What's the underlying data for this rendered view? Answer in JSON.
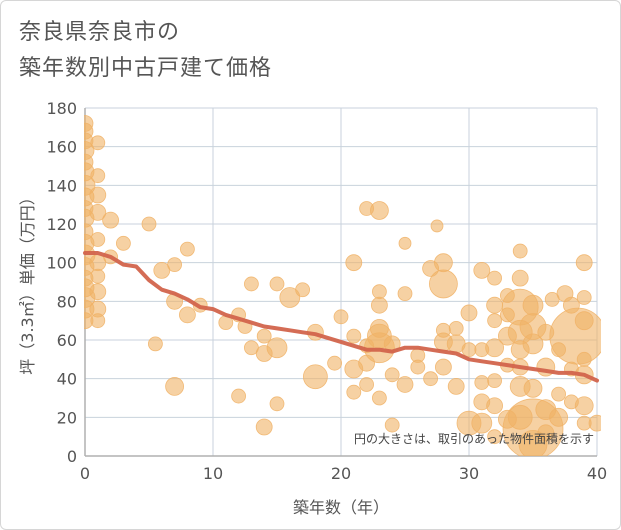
{
  "title_lines": [
    "奈良県奈良市の",
    "築年数別中古戸建て価格"
  ],
  "chart_data": {
    "type": "scatter",
    "title": "奈良県奈良市の築年数別中古戸建て価格",
    "xlabel": "築年数（年）",
    "ylabel": "坪（3.3㎡）単価（万円）",
    "xlim": [
      0,
      40
    ],
    "ylim": [
      0,
      180
    ],
    "xticks": [
      0,
      10,
      20,
      30,
      40
    ],
    "yticks": [
      0,
      20,
      40,
      60,
      80,
      100,
      120,
      140,
      160,
      180
    ],
    "grid": true,
    "note": "円の大きさは、取引のあった物件面積を示す",
    "colors": {
      "bubble": "#f0b266",
      "trend": "#d2644c",
      "grid": "#c8d2dc",
      "axis": "#b0b0b0"
    },
    "scatter_points": [
      {
        "x": 0,
        "y": 172,
        "s": 8
      },
      {
        "x": 0,
        "y": 168,
        "s": 8
      },
      {
        "x": 0,
        "y": 163,
        "s": 8
      },
      {
        "x": 0,
        "y": 158,
        "s": 9
      },
      {
        "x": 0,
        "y": 152,
        "s": 8
      },
      {
        "x": 0,
        "y": 147,
        "s": 9
      },
      {
        "x": 0,
        "y": 140,
        "s": 10
      },
      {
        "x": 0,
        "y": 134,
        "s": 9
      },
      {
        "x": 0,
        "y": 128,
        "s": 8
      },
      {
        "x": 0,
        "y": 123,
        "s": 9
      },
      {
        "x": 0,
        "y": 116,
        "s": 8
      },
      {
        "x": 0,
        "y": 110,
        "s": 9
      },
      {
        "x": 0,
        "y": 104,
        "s": 10
      },
      {
        "x": 0,
        "y": 98,
        "s": 9
      },
      {
        "x": 0,
        "y": 92,
        "s": 8
      },
      {
        "x": 0,
        "y": 87,
        "s": 9
      },
      {
        "x": 0,
        "y": 82,
        "s": 10
      },
      {
        "x": 0,
        "y": 76,
        "s": 9
      },
      {
        "x": 0,
        "y": 70,
        "s": 8
      },
      {
        "x": 1,
        "y": 162,
        "s": 7
      },
      {
        "x": 1,
        "y": 145,
        "s": 7
      },
      {
        "x": 1,
        "y": 135,
        "s": 8
      },
      {
        "x": 1,
        "y": 126,
        "s": 8
      },
      {
        "x": 1,
        "y": 112,
        "s": 7
      },
      {
        "x": 1,
        "y": 100,
        "s": 8
      },
      {
        "x": 1,
        "y": 93,
        "s": 7
      },
      {
        "x": 1,
        "y": 85,
        "s": 8
      },
      {
        "x": 1,
        "y": 76,
        "s": 8
      },
      {
        "x": 1,
        "y": 70,
        "s": 7
      },
      {
        "x": 2,
        "y": 122,
        "s": 8
      },
      {
        "x": 2,
        "y": 103,
        "s": 7
      },
      {
        "x": 3,
        "y": 110,
        "s": 7
      },
      {
        "x": 5,
        "y": 120,
        "s": 7
      },
      {
        "x": 5.5,
        "y": 58,
        "s": 7
      },
      {
        "x": 6,
        "y": 96,
        "s": 8
      },
      {
        "x": 7,
        "y": 99,
        "s": 7
      },
      {
        "x": 7,
        "y": 80,
        "s": 8
      },
      {
        "x": 7,
        "y": 36,
        "s": 9
      },
      {
        "x": 8,
        "y": 107,
        "s": 7
      },
      {
        "x": 8,
        "y": 73,
        "s": 8
      },
      {
        "x": 9,
        "y": 78,
        "s": 7
      },
      {
        "x": 11,
        "y": 69,
        "s": 7
      },
      {
        "x": 12,
        "y": 73,
        "s": 7
      },
      {
        "x": 12,
        "y": 31,
        "s": 7
      },
      {
        "x": 12.5,
        "y": 67,
        "s": 7
      },
      {
        "x": 13,
        "y": 89,
        "s": 7
      },
      {
        "x": 13,
        "y": 56,
        "s": 7
      },
      {
        "x": 14,
        "y": 62,
        "s": 7
      },
      {
        "x": 14,
        "y": 53,
        "s": 8
      },
      {
        "x": 14,
        "y": 15,
        "s": 8
      },
      {
        "x": 15,
        "y": 89,
        "s": 7
      },
      {
        "x": 15,
        "y": 56,
        "s": 10
      },
      {
        "x": 15,
        "y": 27,
        "s": 7
      },
      {
        "x": 16,
        "y": 82,
        "s": 10
      },
      {
        "x": 17,
        "y": 86,
        "s": 7
      },
      {
        "x": 18,
        "y": 64,
        "s": 8
      },
      {
        "x": 18,
        "y": 41,
        "s": 12
      },
      {
        "x": 19.5,
        "y": 48,
        "s": 7
      },
      {
        "x": 20,
        "y": 72,
        "s": 7
      },
      {
        "x": 21,
        "y": 100,
        "s": 8
      },
      {
        "x": 21,
        "y": 62,
        "s": 7
      },
      {
        "x": 21,
        "y": 45,
        "s": 9
      },
      {
        "x": 21,
        "y": 33,
        "s": 7
      },
      {
        "x": 22,
        "y": 128,
        "s": 7
      },
      {
        "x": 22,
        "y": 57,
        "s": 7
      },
      {
        "x": 22,
        "y": 48,
        "s": 8
      },
      {
        "x": 22,
        "y": 37,
        "s": 7
      },
      {
        "x": 23,
        "y": 127,
        "s": 9
      },
      {
        "x": 23,
        "y": 85,
        "s": 7
      },
      {
        "x": 23,
        "y": 78,
        "s": 8
      },
      {
        "x": 23,
        "y": 66,
        "s": 9
      },
      {
        "x": 23,
        "y": 62,
        "s": 12
      },
      {
        "x": 23,
        "y": 56,
        "s": 15
      },
      {
        "x": 23,
        "y": 30,
        "s": 7
      },
      {
        "x": 24,
        "y": 58,
        "s": 8
      },
      {
        "x": 24,
        "y": 42,
        "s": 7
      },
      {
        "x": 24,
        "y": 16,
        "s": 7
      },
      {
        "x": 25,
        "y": 110,
        "s": 6
      },
      {
        "x": 25,
        "y": 84,
        "s": 7
      },
      {
        "x": 25,
        "y": 37,
        "s": 8
      },
      {
        "x": 26,
        "y": 52,
        "s": 7
      },
      {
        "x": 26,
        "y": 46,
        "s": 7
      },
      {
        "x": 27,
        "y": 97,
        "s": 8
      },
      {
        "x": 27,
        "y": 40,
        "s": 7
      },
      {
        "x": 27.5,
        "y": 119,
        "s": 6
      },
      {
        "x": 28,
        "y": 100,
        "s": 9
      },
      {
        "x": 28,
        "y": 89,
        "s": 14
      },
      {
        "x": 28,
        "y": 65,
        "s": 7
      },
      {
        "x": 28,
        "y": 59,
        "s": 9
      },
      {
        "x": 28,
        "y": 46,
        "s": 8
      },
      {
        "x": 29,
        "y": 66,
        "s": 7
      },
      {
        "x": 29,
        "y": 58,
        "s": 9
      },
      {
        "x": 29,
        "y": 36,
        "s": 8
      },
      {
        "x": 30,
        "y": 74,
        "s": 8
      },
      {
        "x": 30,
        "y": 55,
        "s": 7
      },
      {
        "x": 30,
        "y": 17,
        "s": 12
      },
      {
        "x": 31,
        "y": 96,
        "s": 8
      },
      {
        "x": 31,
        "y": 55,
        "s": 7
      },
      {
        "x": 31,
        "y": 38,
        "s": 7
      },
      {
        "x": 31,
        "y": 28,
        "s": 8
      },
      {
        "x": 31,
        "y": 17,
        "s": 10
      },
      {
        "x": 32,
        "y": 92,
        "s": 7
      },
      {
        "x": 32,
        "y": 78,
        "s": 8
      },
      {
        "x": 32,
        "y": 70,
        "s": 7
      },
      {
        "x": 32,
        "y": 56,
        "s": 9
      },
      {
        "x": 32,
        "y": 39,
        "s": 7
      },
      {
        "x": 32,
        "y": 26,
        "s": 8
      },
      {
        "x": 32,
        "y": 10,
        "s": 7
      },
      {
        "x": 33,
        "y": 83,
        "s": 7
      },
      {
        "x": 33,
        "y": 73,
        "s": 7
      },
      {
        "x": 33,
        "y": 62,
        "s": 9
      },
      {
        "x": 33,
        "y": 47,
        "s": 7
      },
      {
        "x": 33,
        "y": 19,
        "s": 9
      },
      {
        "x": 34,
        "y": 106,
        "s": 7
      },
      {
        "x": 34,
        "y": 92,
        "s": 8
      },
      {
        "x": 34,
        "y": 77,
        "s": 18
      },
      {
        "x": 34,
        "y": 64,
        "s": 12
      },
      {
        "x": 34,
        "y": 55,
        "s": 9
      },
      {
        "x": 34,
        "y": 46,
        "s": 8
      },
      {
        "x": 34,
        "y": 36,
        "s": 10
      },
      {
        "x": 34,
        "y": 20,
        "s": 12
      },
      {
        "x": 35,
        "y": 78,
        "s": 10
      },
      {
        "x": 35,
        "y": 67,
        "s": 13
      },
      {
        "x": 35,
        "y": 58,
        "s": 10
      },
      {
        "x": 35,
        "y": 35,
        "s": 9
      },
      {
        "x": 35,
        "y": 14,
        "s": 30
      },
      {
        "x": 35,
        "y": 6,
        "s": 14
      },
      {
        "x": 36,
        "y": 64,
        "s": 8
      },
      {
        "x": 36,
        "y": 46,
        "s": 9
      },
      {
        "x": 36,
        "y": 24,
        "s": 10
      },
      {
        "x": 36,
        "y": 12,
        "s": 8
      },
      {
        "x": 36.5,
        "y": 81,
        "s": 7
      },
      {
        "x": 37,
        "y": 55,
        "s": 7
      },
      {
        "x": 37,
        "y": 32,
        "s": 7
      },
      {
        "x": 37,
        "y": 20,
        "s": 9
      },
      {
        "x": 37.5,
        "y": 84,
        "s": 8
      },
      {
        "x": 38,
        "y": 78,
        "s": 8
      },
      {
        "x": 38,
        "y": 45,
        "s": 7
      },
      {
        "x": 38,
        "y": 28,
        "s": 7
      },
      {
        "x": 38.5,
        "y": 62,
        "s": 28
      },
      {
        "x": 39,
        "y": 100,
        "s": 8
      },
      {
        "x": 39,
        "y": 82,
        "s": 7
      },
      {
        "x": 39,
        "y": 70,
        "s": 9
      },
      {
        "x": 39,
        "y": 50,
        "s": 7
      },
      {
        "x": 39,
        "y": 42,
        "s": 9
      },
      {
        "x": 39,
        "y": 26,
        "s": 9
      },
      {
        "x": 39,
        "y": 17,
        "s": 7
      },
      {
        "x": 40,
        "y": 17,
        "s": 8
      }
    ],
    "trend_line": {
      "x": [
        0,
        1,
        2,
        3,
        4,
        5,
        6,
        7,
        8,
        9,
        10,
        11,
        12,
        13,
        14,
        15,
        16,
        17,
        18,
        19,
        20,
        21,
        22,
        23,
        24,
        25,
        26,
        27,
        28,
        29,
        30,
        31,
        32,
        33,
        34,
        35,
        36,
        37,
        38,
        39,
        40
      ],
      "y": [
        105,
        105,
        103,
        99,
        98,
        91,
        86,
        84,
        81,
        77,
        76,
        73,
        71,
        69,
        67,
        66,
        65,
        64,
        63,
        61,
        59,
        57,
        55,
        55,
        54,
        56,
        56,
        55,
        54,
        53,
        50,
        49,
        48,
        47,
        46,
        45,
        44,
        43,
        43,
        42,
        39
      ]
    }
  }
}
